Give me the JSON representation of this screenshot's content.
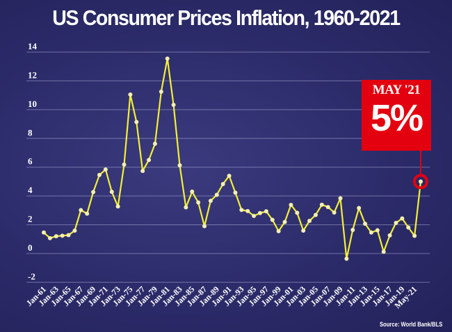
{
  "title": "US Consumer Prices Inflation, 1960-2021",
  "source": "Source: World Bank/BLS",
  "callout": {
    "label": "MAY '21",
    "value": "5%"
  },
  "colors": {
    "line": "#f5f032",
    "callout": "#e3000f",
    "background": "#2c2b6a"
  },
  "chart_data": {
    "type": "line",
    "title": "US Consumer Prices Inflation, 1960-2021",
    "ylim": [
      -2,
      14
    ],
    "yticks": [
      -2,
      0,
      2,
      4,
      6,
      8,
      10,
      12,
      14
    ],
    "ytick_labels": [
      "-2",
      "0",
      "2",
      "4",
      "6",
      "8",
      "10",
      "12",
      "14"
    ],
    "grid": true,
    "xtick_labels": [
      "Jan-61",
      "Jan-63",
      "Jan-65",
      "Jan-67",
      "Jan-69",
      "Jan-71",
      "Jan-73",
      "Jan-75",
      "Jan-77",
      "Jan-79",
      "Jan-81",
      "Jan-83",
      "Jan-85",
      "Jan-87",
      "Jan-89",
      "Jan-91",
      "Jan-93",
      "Jan-95",
      "Jan-97",
      "Jan-99",
      "Jan-01",
      "Jan-03",
      "Jan-05",
      "Jan-07",
      "Jan-09",
      "Jan-11",
      "Jan-13",
      "Jan-15",
      "Jan-17",
      "Jan-19",
      "May-21"
    ],
    "values": [
      1.46,
      1.07,
      1.2,
      1.24,
      1.28,
      1.59,
      3.02,
      2.77,
      4.27,
      5.46,
      5.84,
      4.29,
      3.27,
      6.18,
      11.05,
      9.14,
      5.74,
      6.5,
      7.63,
      11.25,
      13.55,
      10.33,
      6.13,
      3.21,
      4.3,
      3.55,
      1.9,
      3.66,
      4.08,
      4.83,
      5.4,
      4.23,
      3.03,
      2.95,
      2.61,
      2.81,
      2.93,
      2.34,
      1.55,
      2.19,
      3.38,
      2.83,
      1.59,
      2.27,
      2.68,
      3.39,
      3.23,
      2.85,
      3.84,
      -0.36,
      1.64,
      3.16,
      2.07,
      1.46,
      1.62,
      0.12,
      1.26,
      2.13,
      2.44,
      1.81,
      1.23,
      5.0
    ]
  }
}
